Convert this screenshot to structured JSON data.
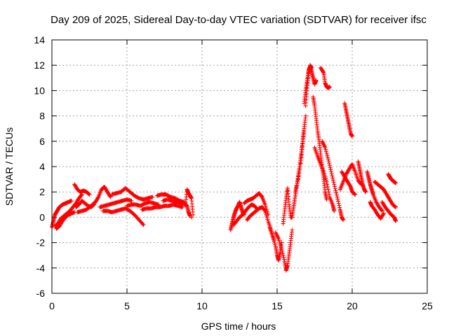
{
  "chart_data": {
    "type": "scatter",
    "title": "Day 209 of 2025, Sidereal Day-to-day VTEC variation (SDTVAR) for receiver ifsc",
    "xlabel": "GPS time / hours",
    "ylabel": "SDTVAR / TECUs",
    "xlim": [
      0,
      25
    ],
    "ylim": [
      -6,
      14
    ],
    "xticks": [
      0,
      5,
      10,
      15,
      20,
      25
    ],
    "yticks": [
      -6,
      -4,
      -2,
      0,
      2,
      4,
      6,
      8,
      10,
      12,
      14
    ],
    "grid": true,
    "marker": "+",
    "series": [
      {
        "name": "SDTVAR",
        "color": "#ff0000",
        "points": [
          [
            0.0,
            -0.8
          ],
          [
            0.1,
            -0.3
          ],
          [
            0.2,
            0.2
          ],
          [
            0.3,
            0.4
          ],
          [
            0.4,
            0.6
          ],
          [
            0.5,
            0.8
          ],
          [
            0.7,
            1.0
          ],
          [
            0.9,
            1.1
          ],
          [
            1.1,
            1.2
          ],
          [
            1.3,
            1.3
          ],
          [
            0.2,
            -0.7
          ],
          [
            0.4,
            -0.5
          ],
          [
            0.6,
            -0.1
          ],
          [
            0.8,
            0.1
          ],
          [
            1.0,
            0.3
          ],
          [
            1.2,
            0.5
          ],
          [
            1.4,
            0.8
          ],
          [
            1.6,
            1.1
          ],
          [
            1.8,
            1.5
          ],
          [
            2.0,
            1.8
          ],
          [
            0.3,
            -0.9
          ],
          [
            0.5,
            -0.7
          ],
          [
            0.7,
            -0.3
          ],
          [
            0.9,
            0.0
          ],
          [
            1.1,
            0.2
          ],
          [
            1.3,
            0.3
          ],
          [
            1.5,
            0.4
          ],
          [
            1.5,
            2.6
          ],
          [
            1.7,
            2.2
          ],
          [
            1.9,
            2.0
          ],
          [
            2.1,
            2.1
          ],
          [
            2.3,
            2.0
          ],
          [
            2.5,
            1.8
          ],
          [
            1.6,
            0.8
          ],
          [
            1.8,
            1.0
          ],
          [
            2.0,
            1.3
          ],
          [
            2.2,
            1.1
          ],
          [
            2.4,
            0.9
          ],
          [
            2.6,
            0.8
          ],
          [
            2.8,
            1.0
          ],
          [
            1.7,
            0.4
          ],
          [
            2.0,
            0.5
          ],
          [
            2.3,
            0.6
          ],
          [
            2.6,
            0.9
          ],
          [
            2.9,
            1.2
          ],
          [
            3.1,
            1.6
          ],
          [
            3.3,
            2.2
          ],
          [
            3.5,
            2.4
          ],
          [
            3.7,
            2.0
          ],
          [
            3.9,
            1.6
          ],
          [
            3.2,
            0.8
          ],
          [
            3.5,
            0.9
          ],
          [
            3.8,
            1.0
          ],
          [
            4.1,
            1.1
          ],
          [
            4.4,
            1.2
          ],
          [
            4.7,
            1.3
          ],
          [
            5.0,
            1.4
          ],
          [
            5.3,
            1.3
          ],
          [
            3.4,
            0.5
          ],
          [
            3.7,
            0.5
          ],
          [
            4.0,
            0.4
          ],
          [
            4.3,
            0.5
          ],
          [
            4.6,
            0.6
          ],
          [
            4.9,
            0.7
          ],
          [
            5.2,
            0.5
          ],
          [
            5.5,
            0.2
          ],
          [
            5.8,
            -0.2
          ],
          [
            6.1,
            -0.6
          ],
          [
            4.0,
            1.8
          ],
          [
            4.3,
            1.9
          ],
          [
            4.6,
            2.0
          ],
          [
            4.9,
            2.3
          ],
          [
            5.2,
            2.0
          ],
          [
            5.5,
            1.7
          ],
          [
            5.8,
            1.5
          ],
          [
            6.1,
            1.4
          ],
          [
            6.4,
            1.5
          ],
          [
            6.7,
            1.6
          ],
          [
            5.0,
            0.9
          ],
          [
            5.3,
            1.0
          ],
          [
            5.6,
            1.0
          ],
          [
            5.9,
            0.9
          ],
          [
            6.2,
            1.1
          ],
          [
            6.5,
            1.2
          ],
          [
            6.8,
            1.1
          ],
          [
            7.1,
            1.0
          ],
          [
            6.0,
            0.6
          ],
          [
            6.3,
            0.7
          ],
          [
            6.6,
            0.7
          ],
          [
            6.9,
            0.8
          ],
          [
            7.2,
            0.8
          ],
          [
            7.5,
            0.9
          ],
          [
            7.8,
            0.9
          ],
          [
            8.1,
            1.0
          ],
          [
            8.4,
            0.9
          ],
          [
            8.7,
            0.8
          ],
          [
            7.0,
            1.7
          ],
          [
            7.3,
            1.8
          ],
          [
            7.6,
            1.8
          ],
          [
            7.9,
            1.6
          ],
          [
            8.2,
            1.5
          ],
          [
            8.5,
            1.3
          ],
          [
            8.8,
            1.2
          ],
          [
            9.0,
            0.9
          ],
          [
            9.1,
            0.4
          ],
          [
            9.2,
            0.1
          ],
          [
            7.4,
            1.3
          ],
          [
            7.7,
            1.4
          ],
          [
            8.0,
            1.3
          ],
          [
            8.3,
            1.2
          ],
          [
            8.6,
            1.1
          ],
          [
            8.9,
            1.0
          ],
          [
            9.0,
            2.2
          ],
          [
            9.1,
            1.9
          ],
          [
            9.2,
            1.7
          ],
          [
            9.3,
            1.5
          ],
          [
            9.4,
            0.2
          ],
          [
            9.3,
            0.0
          ],
          [
            11.9,
            -1.0
          ],
          [
            12.0,
            -0.5
          ],
          [
            12.1,
            0.0
          ],
          [
            12.2,
            0.4
          ],
          [
            12.3,
            0.7
          ],
          [
            12.4,
            0.9
          ],
          [
            12.5,
            1.2
          ],
          [
            12.6,
            0.8
          ],
          [
            12.7,
            0.4
          ],
          [
            12.8,
            0.2
          ],
          [
            12.1,
            -0.6
          ],
          [
            12.3,
            -0.3
          ],
          [
            12.5,
            0.0
          ],
          [
            12.7,
            0.2
          ],
          [
            12.9,
            0.5
          ],
          [
            13.1,
            0.8
          ],
          [
            13.3,
            1.0
          ],
          [
            13.5,
            0.9
          ],
          [
            13.7,
            0.6
          ],
          [
            12.8,
            1.1
          ],
          [
            13.0,
            1.3
          ],
          [
            13.2,
            1.4
          ],
          [
            13.4,
            1.5
          ],
          [
            13.6,
            1.7
          ],
          [
            13.8,
            1.9
          ],
          [
            14.0,
            1.6
          ],
          [
            14.2,
            1.0
          ],
          [
            14.4,
            0.2
          ],
          [
            13.0,
            -0.2
          ],
          [
            13.2,
            0.1
          ],
          [
            13.4,
            0.3
          ],
          [
            13.6,
            0.5
          ],
          [
            13.8,
            0.7
          ],
          [
            14.0,
            0.8
          ],
          [
            14.2,
            0.5
          ],
          [
            14.4,
            -0.3
          ],
          [
            14.6,
            -1.0
          ],
          [
            14.8,
            -1.8
          ],
          [
            14.5,
            -0.8
          ],
          [
            14.7,
            -1.5
          ],
          [
            14.9,
            -2.3
          ],
          [
            15.0,
            -3.0
          ],
          [
            15.1,
            -3.4
          ],
          [
            15.2,
            -2.8
          ],
          [
            15.3,
            -2.0
          ],
          [
            14.9,
            -1.2
          ],
          [
            15.1,
            -1.7
          ],
          [
            15.3,
            -2.5
          ],
          [
            15.5,
            -3.5
          ],
          [
            15.6,
            -4.2
          ],
          [
            15.7,
            -3.8
          ],
          [
            15.8,
            -2.9
          ],
          [
            15.9,
            -2.0
          ],
          [
            16.0,
            -1.0
          ],
          [
            15.4,
            -0.5
          ],
          [
            15.5,
            0.5
          ],
          [
            15.6,
            1.5
          ],
          [
            15.7,
            2.3
          ],
          [
            15.8,
            1.0
          ],
          [
            15.9,
            0.0
          ],
          [
            16.0,
            0.0
          ],
          [
            16.1,
            0.8
          ],
          [
            16.2,
            1.6
          ],
          [
            16.3,
            2.4
          ],
          [
            16.4,
            3.2
          ],
          [
            16.5,
            4.0
          ],
          [
            16.6,
            5.0
          ],
          [
            16.7,
            6.0
          ],
          [
            16.8,
            7.0
          ],
          [
            16.9,
            8.0
          ],
          [
            16.2,
            2.0
          ],
          [
            16.4,
            3.0
          ],
          [
            16.6,
            4.5
          ],
          [
            16.7,
            5.8
          ],
          [
            16.8,
            7.0
          ],
          [
            16.9,
            8.8
          ],
          [
            17.0,
            10.2
          ],
          [
            17.1,
            11.4
          ],
          [
            17.2,
            12.0
          ],
          [
            17.3,
            11.8
          ],
          [
            16.8,
            9.0
          ],
          [
            16.9,
            10.0
          ],
          [
            17.0,
            10.8
          ],
          [
            17.1,
            11.6
          ],
          [
            17.2,
            11.9
          ],
          [
            17.3,
            11.5
          ],
          [
            17.4,
            11.0
          ],
          [
            17.5,
            10.5
          ],
          [
            17.6,
            10.8
          ],
          [
            17.4,
            9.5
          ],
          [
            17.5,
            8.8
          ],
          [
            17.6,
            7.8
          ],
          [
            17.7,
            6.8
          ],
          [
            17.8,
            6.0
          ],
          [
            17.9,
            5.0
          ],
          [
            18.0,
            4.0
          ],
          [
            18.1,
            3.0
          ],
          [
            18.2,
            2.0
          ],
          [
            18.3,
            1.4
          ],
          [
            17.5,
            5.5
          ],
          [
            17.7,
            4.8
          ],
          [
            17.9,
            4.2
          ],
          [
            18.1,
            3.6
          ],
          [
            18.3,
            2.8
          ],
          [
            18.5,
            1.6
          ],
          [
            18.7,
            1.0
          ],
          [
            18.8,
            0.5
          ],
          [
            18.0,
            6.0
          ],
          [
            18.2,
            5.5
          ],
          [
            18.4,
            4.6
          ],
          [
            18.6,
            3.6
          ],
          [
            18.8,
            2.6
          ],
          [
            19.0,
            1.6
          ],
          [
            19.2,
            0.6
          ],
          [
            19.3,
            0.0
          ],
          [
            19.4,
            -0.2
          ],
          [
            17.9,
            11.8
          ],
          [
            18.1,
            11.4
          ],
          [
            18.2,
            10.6
          ],
          [
            18.3,
            10.3
          ],
          [
            18.4,
            10.2
          ],
          [
            18.5,
            10.3
          ],
          [
            19.5,
            9.0
          ],
          [
            19.6,
            8.4
          ],
          [
            19.7,
            7.8
          ],
          [
            19.8,
            7.2
          ],
          [
            19.9,
            6.6
          ],
          [
            20.0,
            6.4
          ],
          [
            19.2,
            2.2
          ],
          [
            19.4,
            2.8
          ],
          [
            19.6,
            3.4
          ],
          [
            19.8,
            3.8
          ],
          [
            20.0,
            4.2
          ],
          [
            20.2,
            3.6
          ],
          [
            20.4,
            2.9
          ],
          [
            20.6,
            2.6
          ],
          [
            19.3,
            3.6
          ],
          [
            19.5,
            3.2
          ],
          [
            19.7,
            2.8
          ],
          [
            19.9,
            2.4
          ],
          [
            20.0,
            2.0
          ],
          [
            20.2,
            1.8
          ],
          [
            20.4,
            4.4
          ],
          [
            20.5,
            3.8
          ],
          [
            20.6,
            3.2
          ],
          [
            20.7,
            2.6
          ],
          [
            20.8,
            2.2
          ],
          [
            20.9,
            2.0
          ],
          [
            21.0,
            3.6
          ],
          [
            21.1,
            3.1
          ],
          [
            21.2,
            2.6
          ],
          [
            21.3,
            2.2
          ],
          [
            21.4,
            1.8
          ],
          [
            21.6,
            1.2
          ],
          [
            21.8,
            0.8
          ],
          [
            22.0,
            0.5
          ],
          [
            21.2,
            1.2
          ],
          [
            21.3,
            0.9
          ],
          [
            21.5,
            0.6
          ],
          [
            21.7,
            0.2
          ],
          [
            21.9,
            -0.1
          ],
          [
            22.1,
            0.3
          ],
          [
            21.5,
            2.8
          ],
          [
            21.7,
            2.6
          ],
          [
            21.9,
            2.4
          ],
          [
            22.1,
            2.2
          ],
          [
            22.3,
            1.8
          ],
          [
            22.5,
            1.4
          ],
          [
            22.7,
            1.0
          ],
          [
            22.9,
            0.8
          ],
          [
            22.0,
            1.2
          ],
          [
            22.2,
            0.8
          ],
          [
            22.4,
            0.5
          ],
          [
            22.6,
            0.2
          ],
          [
            22.8,
            0.0
          ],
          [
            22.9,
            -0.3
          ],
          [
            22.4,
            3.4
          ],
          [
            22.5,
            3.2
          ],
          [
            22.6,
            3.0
          ],
          [
            22.7,
            2.9
          ],
          [
            22.8,
            2.8
          ],
          [
            22.9,
            2.7
          ]
        ]
      }
    ]
  }
}
